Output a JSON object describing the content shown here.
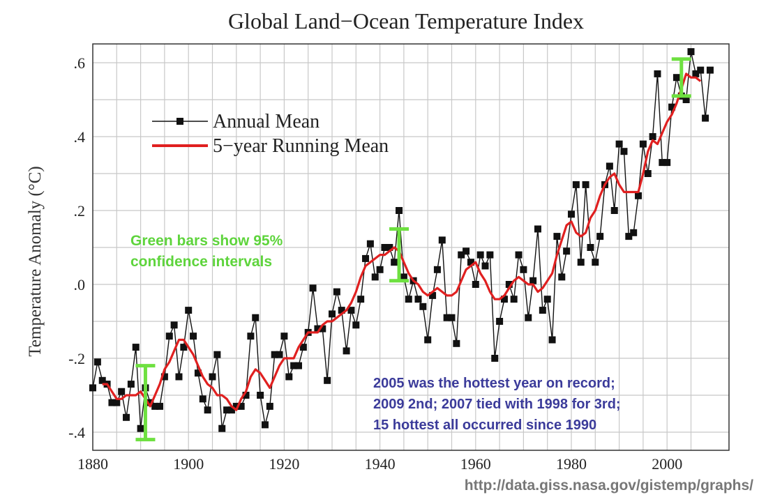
{
  "chart_data": {
    "type": "line",
    "title": "Global Land−Ocean Temperature Index",
    "ylabel": "Temperature Anomaly (°C)",
    "xlabel": "",
    "xlim": [
      1880,
      2010
    ],
    "ylim": [
      -0.44,
      0.65
    ],
    "grid": true,
    "legend_placement": "top-left",
    "x_ticks": [
      1880,
      1900,
      1920,
      1940,
      1960,
      1980,
      2000
    ],
    "x_tick_labels": [
      "1880",
      "1900",
      "1920",
      "1940",
      "1960",
      "1980",
      "2000"
    ],
    "y_ticks": [
      -0.4,
      -0.2,
      0.0,
      0.2,
      0.4,
      0.6
    ],
    "y_tick_labels": [
      "-.4",
      "-.2",
      ".0",
      ".2",
      ".4",
      ".6"
    ],
    "legend": [
      {
        "label": "Annual Mean",
        "color": "#111111",
        "style": "line-with-square-markers"
      },
      {
        "label": "5−year Running Mean",
        "color": "#e02020",
        "style": "line"
      }
    ],
    "series": [
      {
        "name": "Annual Mean",
        "color": "#111111",
        "x": [
          1880,
          1881,
          1882,
          1883,
          1884,
          1885,
          1886,
          1887,
          1888,
          1889,
          1890,
          1891,
          1892,
          1893,
          1894,
          1895,
          1896,
          1897,
          1898,
          1899,
          1900,
          1901,
          1902,
          1903,
          1904,
          1905,
          1906,
          1907,
          1908,
          1909,
          1910,
          1911,
          1912,
          1913,
          1914,
          1915,
          1916,
          1917,
          1918,
          1919,
          1920,
          1921,
          1922,
          1923,
          1924,
          1925,
          1926,
          1927,
          1928,
          1929,
          1930,
          1931,
          1932,
          1933,
          1934,
          1935,
          1936,
          1937,
          1938,
          1939,
          1940,
          1941,
          1942,
          1943,
          1944,
          1945,
          1946,
          1947,
          1948,
          1949,
          1950,
          1951,
          1952,
          1953,
          1954,
          1955,
          1956,
          1957,
          1958,
          1959,
          1960,
          1961,
          1962,
          1963,
          1964,
          1965,
          1966,
          1967,
          1968,
          1969,
          1970,
          1971,
          1972,
          1973,
          1974,
          1975,
          1976,
          1977,
          1978,
          1979,
          1980,
          1981,
          1982,
          1983,
          1984,
          1985,
          1986,
          1987,
          1988,
          1989,
          1990,
          1991,
          1992,
          1993,
          1994,
          1995,
          1996,
          1997,
          1998,
          1999,
          2000,
          2001,
          2002,
          2003,
          2004,
          2005,
          2006,
          2007,
          2008,
          2009
        ],
        "values": [
          -0.28,
          -0.21,
          -0.26,
          -0.27,
          -0.32,
          -0.32,
          -0.29,
          -0.36,
          -0.27,
          -0.17,
          -0.39,
          -0.28,
          -0.32,
          -0.33,
          -0.33,
          -0.25,
          -0.14,
          -0.11,
          -0.25,
          -0.17,
          -0.07,
          -0.14,
          -0.24,
          -0.31,
          -0.34,
          -0.25,
          -0.19,
          -0.39,
          -0.34,
          -0.34,
          -0.33,
          -0.33,
          -0.3,
          -0.14,
          -0.09,
          -0.3,
          -0.38,
          -0.33,
          -0.19,
          -0.19,
          -0.14,
          -0.25,
          -0.22,
          -0.22,
          -0.17,
          -0.13,
          -0.01,
          -0.12,
          -0.12,
          -0.26,
          -0.08,
          -0.02,
          -0.07,
          -0.18,
          -0.07,
          -0.11,
          -0.04,
          0.07,
          0.11,
          0.02,
          0.04,
          0.1,
          0.1,
          0.06,
          0.2,
          0.02,
          -0.04,
          0.01,
          -0.04,
          -0.06,
          -0.15,
          -0.03,
          0.04,
          0.12,
          -0.09,
          -0.09,
          -0.16,
          0.08,
          0.09,
          0.06,
          0.0,
          0.08,
          0.05,
          0.08,
          -0.2,
          -0.1,
          -0.04,
          0.0,
          -0.04,
          0.08,
          0.04,
          -0.09,
          0.01,
          0.15,
          -0.07,
          -0.04,
          -0.15,
          0.13,
          0.02,
          0.09,
          0.19,
          0.27,
          0.06,
          0.27,
          0.1,
          0.06,
          0.13,
          0.27,
          0.32,
          0.2,
          0.38,
          0.36,
          0.13,
          0.14,
          0.24,
          0.38,
          0.3,
          0.4,
          0.57,
          0.33,
          0.33,
          0.48,
          0.56,
          0.51,
          0.5,
          0.63,
          0.57,
          0.58,
          0.45,
          0.58
        ]
      },
      {
        "name": "5−year Running Mean",
        "color": "#e02020",
        "x": [
          1882,
          1883,
          1884,
          1885,
          1886,
          1887,
          1888,
          1889,
          1890,
          1891,
          1892,
          1893,
          1894,
          1895,
          1896,
          1897,
          1898,
          1899,
          1900,
          1901,
          1902,
          1903,
          1904,
          1905,
          1906,
          1907,
          1908,
          1909,
          1910,
          1911,
          1912,
          1913,
          1914,
          1915,
          1916,
          1917,
          1918,
          1919,
          1920,
          1921,
          1922,
          1923,
          1924,
          1925,
          1926,
          1927,
          1928,
          1929,
          1930,
          1931,
          1932,
          1933,
          1934,
          1935,
          1936,
          1937,
          1938,
          1939,
          1940,
          1941,
          1942,
          1943,
          1944,
          1945,
          1946,
          1947,
          1948,
          1949,
          1950,
          1951,
          1952,
          1953,
          1954,
          1955,
          1956,
          1957,
          1958,
          1959,
          1960,
          1961,
          1962,
          1963,
          1964,
          1965,
          1966,
          1967,
          1968,
          1969,
          1970,
          1971,
          1972,
          1973,
          1974,
          1975,
          1976,
          1977,
          1978,
          1979,
          1980,
          1981,
          1982,
          1983,
          1984,
          1985,
          1986,
          1987,
          1988,
          1989,
          1990,
          1991,
          1992,
          1993,
          1994,
          1995,
          1996,
          1997,
          1998,
          1999,
          2000,
          2001,
          2002,
          2003,
          2004,
          2005,
          2006,
          2007
        ],
        "values": [
          -0.27,
          -0.27,
          -0.29,
          -0.31,
          -0.31,
          -0.3,
          -0.3,
          -0.3,
          -0.29,
          -0.31,
          -0.33,
          -0.3,
          -0.27,
          -0.23,
          -0.21,
          -0.18,
          -0.15,
          -0.15,
          -0.17,
          -0.19,
          -0.22,
          -0.25,
          -0.27,
          -0.28,
          -0.3,
          -0.3,
          -0.31,
          -0.33,
          -0.34,
          -0.31,
          -0.29,
          -0.25,
          -0.23,
          -0.24,
          -0.26,
          -0.28,
          -0.25,
          -0.22,
          -0.2,
          -0.2,
          -0.2,
          -0.17,
          -0.15,
          -0.13,
          -0.13,
          -0.13,
          -0.11,
          -0.1,
          -0.1,
          -0.09,
          -0.08,
          -0.07,
          -0.05,
          -0.02,
          0.02,
          0.05,
          0.06,
          0.07,
          0.08,
          0.08,
          0.09,
          0.1,
          0.09,
          0.06,
          0.03,
          0.01,
          0.0,
          -0.02,
          -0.03,
          -0.02,
          -0.01,
          -0.02,
          -0.03,
          -0.03,
          -0.02,
          0.01,
          0.04,
          0.05,
          0.06,
          0.03,
          0.01,
          -0.02,
          -0.04,
          -0.04,
          -0.03,
          -0.01,
          0.01,
          0.02,
          0.01,
          0.0,
          0.0,
          -0.02,
          -0.01,
          0.01,
          0.03,
          0.08,
          0.12,
          0.16,
          0.17,
          0.14,
          0.13,
          0.14,
          0.18,
          0.2,
          0.24,
          0.27,
          0.29,
          0.3,
          0.27,
          0.25,
          0.25,
          0.25,
          0.25,
          0.3,
          0.36,
          0.39,
          0.38,
          0.41,
          0.44,
          0.46,
          0.49,
          0.53,
          0.57,
          0.56,
          0.56,
          0.55
        ]
      }
    ],
    "error_bars": [
      {
        "x": 1891,
        "y_low": -0.42,
        "y_high": -0.22,
        "color": "#6ee040"
      },
      {
        "x": 1944,
        "y_low": 0.01,
        "y_high": 0.15,
        "color": "#6ee040"
      },
      {
        "x": 2003,
        "y_low": 0.51,
        "y_high": 0.61,
        "color": "#6ee040"
      }
    ],
    "annotations": [
      {
        "id": "green-note",
        "lines": [
          "Green bars show 95%",
          "confidence intervals"
        ],
        "color": "#5ed43c"
      },
      {
        "id": "record-note",
        "lines": [
          "2005 was the hottest year on record;",
          "2009 2nd; 2007 tied with 1998 for 3rd;",
          "15 hottest all occurred since 1990"
        ],
        "color": "#3b3b9a"
      }
    ],
    "source_url": "http://data.giss.nasa.gov/gistemp/graphs/"
  }
}
